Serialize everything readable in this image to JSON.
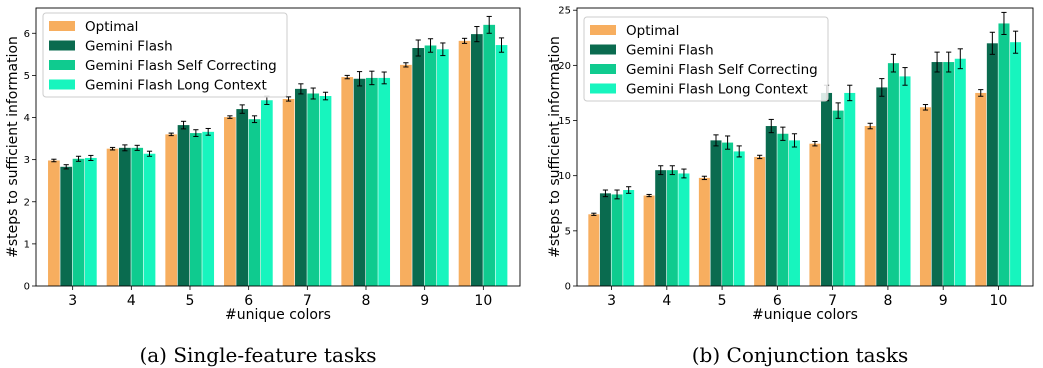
{
  "chart_data": [
    {
      "type": "bar",
      "caption": "(a) Single-feature tasks",
      "xlabel": "#unique colors",
      "ylabel": "#steps to sufficient information",
      "categories": [
        "3",
        "4",
        "5",
        "6",
        "7",
        "8",
        "9",
        "10"
      ],
      "ylim": [
        0,
        6.6
      ],
      "yticks": [
        0,
        1,
        2,
        3,
        4,
        5,
        6
      ],
      "legend_position": "upper-left",
      "series": [
        {
          "name": "Optimal",
          "color": "#F7AE5F",
          "values": [
            2.98,
            3.26,
            3.6,
            4.01,
            4.44,
            4.96,
            5.25,
            5.82
          ],
          "errors": [
            0.03,
            0.03,
            0.03,
            0.03,
            0.05,
            0.04,
            0.05,
            0.06
          ]
        },
        {
          "name": "Gemini Flash",
          "color": "#0A6B4F",
          "values": [
            2.83,
            3.28,
            3.82,
            4.2,
            4.68,
            4.92,
            5.65,
            5.98
          ],
          "errors": [
            0.05,
            0.07,
            0.09,
            0.1,
            0.12,
            0.17,
            0.19,
            0.18
          ]
        },
        {
          "name": "Gemini Flash Self Correcting",
          "color": "#0FCB8F",
          "values": [
            3.02,
            3.28,
            3.63,
            3.96,
            4.57,
            4.94,
            5.71,
            6.2
          ],
          "errors": [
            0.06,
            0.06,
            0.08,
            0.08,
            0.13,
            0.16,
            0.16,
            0.2
          ]
        },
        {
          "name": "Gemini Flash Long Context",
          "color": "#17F5BE",
          "values": [
            3.04,
            3.14,
            3.66,
            4.41,
            4.51,
            4.94,
            5.62,
            5.72
          ],
          "errors": [
            0.06,
            0.06,
            0.08,
            0.1,
            0.09,
            0.14,
            0.15,
            0.17
          ]
        }
      ]
    },
    {
      "type": "bar",
      "caption": "(b) Conjunction tasks",
      "xlabel": "#unique colors",
      "ylabel": "#steps to sufficient information",
      "categories": [
        "3",
        "4",
        "5",
        "6",
        "7",
        "8",
        "9",
        "10"
      ],
      "ylim": [
        0,
        25.2
      ],
      "yticks": [
        0,
        5,
        10,
        15,
        20,
        25
      ],
      "legend_position": "upper-left",
      "series": [
        {
          "name": "Optimal",
          "color": "#F7AE5F",
          "values": [
            6.5,
            8.2,
            9.8,
            11.7,
            12.9,
            14.5,
            16.2,
            17.5
          ],
          "errors": [
            0.1,
            0.1,
            0.15,
            0.15,
            0.2,
            0.25,
            0.25,
            0.3
          ]
        },
        {
          "name": "Gemini Flash",
          "color": "#0A6B4F",
          "values": [
            8.4,
            10.5,
            13.2,
            14.5,
            17.5,
            18.0,
            20.3,
            22.0
          ],
          "errors": [
            0.3,
            0.4,
            0.5,
            0.6,
            0.7,
            0.8,
            0.9,
            1.0
          ]
        },
        {
          "name": "Gemini Flash Self Correcting",
          "color": "#0FCB8F",
          "values": [
            8.3,
            10.5,
            13.0,
            13.8,
            15.9,
            20.2,
            20.3,
            23.8
          ],
          "errors": [
            0.4,
            0.4,
            0.6,
            0.6,
            0.7,
            0.8,
            0.9,
            1.0
          ]
        },
        {
          "name": "Gemini Flash Long Context",
          "color": "#17F5BE",
          "values": [
            8.7,
            10.2,
            12.2,
            13.2,
            17.5,
            19.0,
            20.6,
            22.1
          ],
          "errors": [
            0.3,
            0.4,
            0.5,
            0.6,
            0.7,
            0.8,
            0.9,
            1.0
          ]
        }
      ]
    }
  ]
}
